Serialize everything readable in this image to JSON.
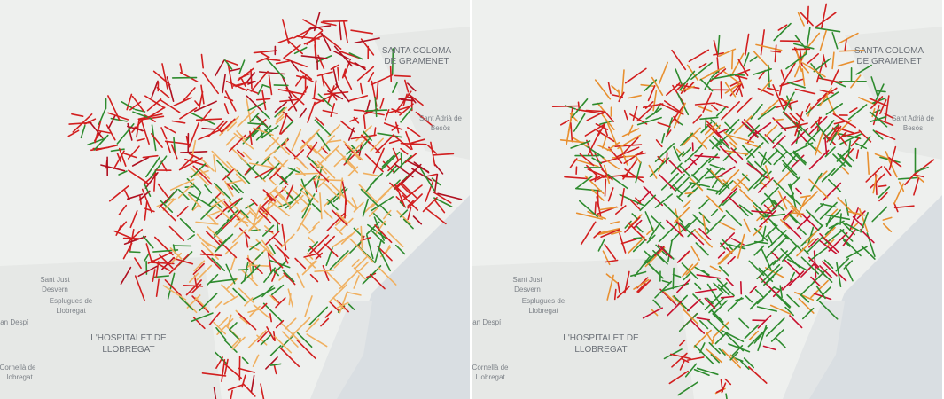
{
  "panels": [
    {
      "labels": [
        {
          "lines": [
            "SANTA COLOMA",
            "DE GRAMENET"
          ]
        },
        {
          "lines": [
            "Sant Adrià de",
            "Besòs"
          ]
        },
        {
          "lines": [
            "Sant Just",
            "Desvern"
          ]
        },
        {
          "lines": [
            "Esplugues de",
            "Llobregat"
          ]
        },
        {
          "lines": [
            "oan Despí"
          ]
        },
        {
          "lines": [
            "L'HOSPITALET DE",
            "LLOBREGAT"
          ]
        },
        {
          "lines": [
            "Cornellà de",
            "Llobregat"
          ]
        }
      ]
    },
    {
      "labels": [
        {
          "lines": [
            "SANTA COLOMA",
            "DE GRAMENET"
          ]
        },
        {
          "lines": [
            "Sant Adrià de",
            "Besòs"
          ]
        },
        {
          "lines": [
            "Sant Just",
            "Desvern"
          ]
        },
        {
          "lines": [
            "Esplugues de",
            "Llobregat"
          ]
        },
        {
          "lines": [
            "oan Despí"
          ]
        },
        {
          "lines": [
            "L'HOSPITALET DE",
            "LLOBREGAT"
          ]
        },
        {
          "lines": [
            "Cornellà de",
            "Llobregat"
          ]
        }
      ]
    }
  ]
}
